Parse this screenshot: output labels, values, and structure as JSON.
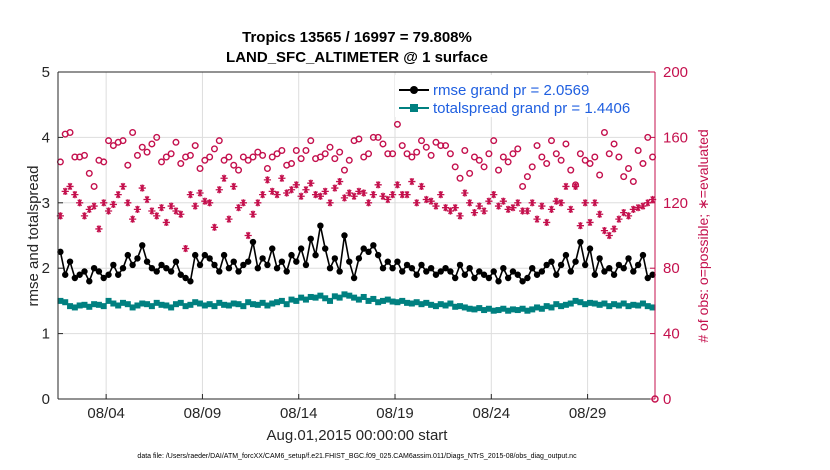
{
  "colors": {
    "rmse": "#000000",
    "spread": "#008080",
    "obs": "#c4104d",
    "grid": "#dddddd",
    "axis": "#262626",
    "legend_text": "#1f5fe0"
  },
  "chart_data": {
    "type": "line",
    "title_line1": "Tropics 13565 / 16997 = 79.808%",
    "title_line2": "LAND_SFC_ALTIMETER @ 1 surface",
    "xlabel": "Aug.01,2015 00:00:00 start",
    "ylabel": "rmse and totalspread",
    "ylabel_right": "# of obs: o=possible; ∗=evaluated",
    "footnote": "data file: /Users/raeder/DAI/ATM_forcXX/CAM6_setup/f.e21.FHIST_BGC.f09_025.CAM6assim.011/Diags_NTrS_2015-08/obs_diag_output.nc",
    "x_unit": "days since Aug 01 2015",
    "xlim": [
      0.5,
      31.5
    ],
    "ylim": [
      0,
      5
    ],
    "ylim_right": [
      0,
      200
    ],
    "x_tick_values": [
      3,
      8,
      13,
      18,
      23,
      28
    ],
    "x_tick_labels": [
      "08/04",
      "08/09",
      "08/14",
      "08/19",
      "08/24",
      "08/29"
    ],
    "y_ticks": [
      "0",
      "1",
      "2",
      "3",
      "4",
      "5"
    ],
    "y_ticks_right": [
      "0",
      "40",
      "80",
      "120",
      "160",
      "200"
    ],
    "x": [
      0.625,
      0.875,
      1.125,
      1.375,
      1.625,
      1.875,
      2.125,
      2.375,
      2.625,
      2.875,
      3.125,
      3.375,
      3.625,
      3.875,
      4.125,
      4.375,
      4.625,
      4.875,
      5.125,
      5.375,
      5.625,
      5.875,
      6.125,
      6.375,
      6.625,
      6.875,
      7.125,
      7.375,
      7.625,
      7.875,
      8.125,
      8.375,
      8.625,
      8.875,
      9.125,
      9.375,
      9.625,
      9.875,
      10.125,
      10.375,
      10.625,
      10.875,
      11.125,
      11.375,
      11.625,
      11.875,
      12.125,
      12.375,
      12.625,
      12.875,
      13.125,
      13.375,
      13.625,
      13.875,
      14.125,
      14.375,
      14.625,
      14.875,
      15.125,
      15.375,
      15.625,
      15.875,
      16.125,
      16.375,
      16.625,
      16.875,
      17.125,
      17.375,
      17.625,
      17.875,
      18.125,
      18.375,
      18.625,
      18.875,
      19.125,
      19.375,
      19.625,
      19.875,
      20.125,
      20.375,
      20.625,
      20.875,
      21.125,
      21.375,
      21.625,
      21.875,
      22.125,
      22.375,
      22.625,
      22.875,
      23.125,
      23.375,
      23.625,
      23.875,
      24.125,
      24.375,
      24.625,
      24.875,
      25.125,
      25.375,
      25.625,
      25.875,
      26.125,
      26.375,
      26.625,
      26.875,
      27.125,
      27.375,
      27.625,
      27.875,
      28.125,
      28.375,
      28.625,
      28.875,
      29.125,
      29.375,
      29.625,
      29.875,
      30.125,
      30.375,
      30.625,
      30.875,
      31.125,
      31.375
    ],
    "series": [
      {
        "name": "rmse grand pr = 2.0569",
        "marker": "filled-circle",
        "axis": "left",
        "values": [
          2.25,
          1.9,
          2.1,
          1.85,
          1.9,
          1.95,
          1.8,
          2.0,
          1.95,
          1.85,
          1.9,
          2.05,
          1.9,
          2.0,
          2.2,
          2.05,
          2.15,
          2.35,
          2.1,
          2.0,
          1.95,
          2.05,
          2.0,
          1.95,
          2.1,
          1.9,
          1.85,
          1.8,
          2.2,
          2.05,
          2.2,
          2.15,
          2.05,
          1.95,
          2.2,
          2.0,
          2.1,
          1.95,
          2.05,
          2.1,
          2.4,
          2.0,
          2.15,
          2.05,
          2.3,
          2.0,
          2.1,
          1.95,
          2.2,
          2.1,
          2.3,
          2.05,
          2.45,
          2.2,
          2.65,
          2.3,
          2.0,
          2.15,
          1.95,
          2.5,
          2.1,
          1.85,
          2.15,
          2.3,
          2.25,
          2.35,
          2.2,
          2.0,
          2.1,
          2.0,
          2.1,
          1.95,
          2.05,
          2.0,
          1.9,
          2.05,
          1.95,
          2.0,
          1.9,
          1.95,
          2.0,
          1.95,
          1.85,
          2.05,
          1.9,
          2.0,
          1.85,
          1.95,
          1.9,
          1.85,
          1.95,
          1.8,
          2.0,
          1.85,
          1.95,
          1.9,
          1.8,
          1.85,
          2.0,
          1.9,
          1.95,
          2.05,
          2.1,
          1.9,
          2.05,
          2.2,
          1.95,
          2.1,
          2.4,
          2.05,
          2.3,
          1.9,
          2.15,
          1.95,
          2.0,
          1.9,
          2.05,
          2.0,
          2.15,
          1.95,
          2.05,
          2.2,
          1.85,
          1.9
        ]
      },
      {
        "name": "totalspread grand pr = 1.4406",
        "marker": "filled-square",
        "axis": "left",
        "values": [
          1.5,
          1.48,
          1.42,
          1.4,
          1.43,
          1.44,
          1.41,
          1.45,
          1.44,
          1.42,
          1.5,
          1.46,
          1.43,
          1.47,
          1.45,
          1.4,
          1.43,
          1.46,
          1.45,
          1.42,
          1.47,
          1.44,
          1.43,
          1.4,
          1.45,
          1.47,
          1.42,
          1.44,
          1.48,
          1.46,
          1.43,
          1.45,
          1.42,
          1.47,
          1.44,
          1.43,
          1.46,
          1.45,
          1.42,
          1.48,
          1.45,
          1.44,
          1.47,
          1.43,
          1.46,
          1.48,
          1.5,
          1.45,
          1.52,
          1.5,
          1.55,
          1.52,
          1.56,
          1.55,
          1.58,
          1.54,
          1.5,
          1.57,
          1.55,
          1.6,
          1.58,
          1.55,
          1.52,
          1.56,
          1.5,
          1.53,
          1.48,
          1.5,
          1.52,
          1.49,
          1.48,
          1.5,
          1.47,
          1.46,
          1.48,
          1.45,
          1.47,
          1.44,
          1.42,
          1.45,
          1.43,
          1.46,
          1.41,
          1.42,
          1.4,
          1.38,
          1.37,
          1.39,
          1.36,
          1.38,
          1.35,
          1.36,
          1.38,
          1.35,
          1.37,
          1.36,
          1.38,
          1.35,
          1.37,
          1.4,
          1.38,
          1.42,
          1.4,
          1.45,
          1.42,
          1.44,
          1.46,
          1.5,
          1.48,
          1.45,
          1.47,
          1.46,
          1.44,
          1.46,
          1.42,
          1.45,
          1.43,
          1.46,
          1.42,
          1.44,
          1.43,
          1.46,
          1.42,
          1.4
        ]
      },
      {
        "name": "obs possible",
        "marker": "open-circle",
        "axis": "right",
        "values": [
          145,
          162,
          163,
          148,
          148,
          149,
          138,
          130,
          146,
          145,
          158,
          155,
          157,
          158,
          143,
          163,
          149,
          154,
          151,
          156,
          160,
          145,
          148,
          150,
          157,
          144,
          148,
          149,
          155,
          141,
          146,
          148,
          153,
          158,
          146,
          148,
          143,
          140,
          148,
          146,
          148,
          151,
          149,
          141,
          148,
          150,
          152,
          143,
          144,
          152,
          147,
          152,
          158,
          147,
          148,
          150,
          154,
          147,
          151,
          140,
          146,
          158,
          159,
          148,
          150,
          160,
          160,
          156,
          150,
          150,
          168,
          155,
          150,
          148,
          151,
          158,
          154,
          149,
          157,
          155,
          155,
          150,
          142,
          135,
          152,
          138,
          148,
          146,
          142,
          150,
          158,
          140,
          148,
          145,
          150,
          153,
          130,
          136,
          142,
          155,
          148,
          144,
          158,
          150,
          146,
          156,
          140,
          131,
          150,
          146,
          144,
          148,
          137,
          163,
          150,
          156,
          148,
          136,
          141,
          133,
          152,
          144,
          160,
          148
        ]
      },
      {
        "name": "obs evaluated",
        "marker": "asterisk",
        "axis": "right",
        "values": [
          112,
          127,
          130,
          125,
          120,
          112,
          116,
          118,
          104,
          120,
          115,
          119,
          125,
          130,
          120,
          110,
          116,
          129,
          122,
          115,
          112,
          117,
          108,
          118,
          115,
          113,
          92,
          125,
          118,
          126,
          121,
          120,
          105,
          128,
          135,
          110,
          130,
          117,
          120,
          100,
          113,
          120,
          125,
          134,
          127,
          125,
          135,
          126,
          128,
          131,
          124,
          128,
          132,
          125,
          124,
          127,
          120,
          129,
          133,
          123,
          126,
          124,
          127,
          126,
          120,
          125,
          131,
          124,
          122,
          125,
          131,
          125,
          125,
          133,
          120,
          130,
          122,
          121,
          118,
          125,
          117,
          115,
          117,
          112,
          126,
          120,
          114,
          118,
          115,
          121,
          125,
          118,
          121,
          116,
          117,
          120,
          115,
          115,
          120,
          110,
          118,
          108,
          116,
          121,
          120,
          130,
          116,
          130,
          106,
          120,
          108,
          120,
          113,
          103,
          100,
          104,
          110,
          114,
          112,
          116,
          117,
          118,
          120,
          122
        ]
      }
    ],
    "legend_location": "top-right",
    "grid": true
  }
}
